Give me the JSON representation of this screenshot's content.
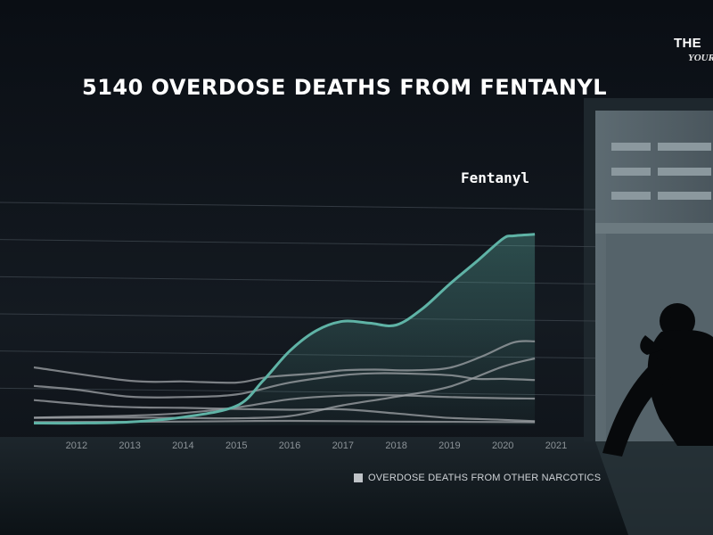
{
  "chart_data": {
    "type": "line",
    "title": "5140 OVERDOSE DEATHS FROM FENTANYL",
    "x": [
      "2012",
      "2013",
      "2014",
      "2015",
      "2016",
      "2017",
      "2018",
      "2019",
      "2020",
      "2021"
    ],
    "highlight_series": {
      "name": "Fentanyl",
      "color": "#5fb3a6",
      "x": [
        2011.2,
        2012,
        2013,
        2014,
        2015,
        2015.5,
        2016,
        2016.5,
        2017,
        2017.5,
        2018,
        2018.5,
        2019,
        2019.5,
        2020,
        2020.2,
        2020.6
      ],
      "values": [
        60,
        60,
        90,
        220,
        520,
        1200,
        2000,
        2550,
        2800,
        2750,
        2700,
        3150,
        3800,
        4400,
        5020,
        5100,
        5140
      ]
    },
    "other_series": [
      {
        "x": [
          2011.2,
          2012.5,
          2013.3,
          2014,
          2015,
          2016,
          2017,
          2018,
          2019,
          2020,
          2020.6
        ],
        "values": [
          680,
          520,
          480,
          470,
          440,
          420,
          430,
          320,
          200,
          150,
          110
        ]
      },
      {
        "x": [
          2011.2,
          2013,
          2014,
          2015,
          2015.6,
          2016.5,
          2017,
          2017.6,
          2018.3,
          2019,
          2019.6,
          2020.2,
          2020.6
        ],
        "values": [
          1560,
          1200,
          1180,
          1150,
          1300,
          1400,
          1480,
          1500,
          1480,
          1550,
          1850,
          2230,
          2260
        ]
      },
      {
        "x": [
          2011.2,
          2012.5,
          2013.3,
          2014,
          2015,
          2016,
          2017,
          2018,
          2019,
          2020,
          2020.6
        ],
        "values": [
          200,
          210,
          210,
          200,
          190,
          250,
          540,
          770,
          1040,
          1580,
          1800
        ]
      },
      {
        "x": [
          2011.2,
          2012,
          2013,
          2014,
          2015,
          2016,
          2017,
          2017.6,
          2018,
          2019,
          2019.5,
          2020,
          2020.6
        ],
        "values": [
          1060,
          960,
          770,
          760,
          830,
          1150,
          1350,
          1400,
          1400,
          1350,
          1250,
          1250,
          1220
        ]
      },
      {
        "x": [
          2011.2,
          2012,
          2013,
          2014,
          2015,
          2016,
          2017,
          2018,
          2019,
          2020,
          2020.6
        ],
        "values": [
          210,
          230,
          260,
          330,
          480,
          700,
          800,
          810,
          760,
          730,
          720
        ]
      },
      {
        "x": [
          2011.2,
          2014,
          2016,
          2018,
          2020,
          2020.6
        ],
        "values": [
          90,
          100,
          120,
          100,
          90,
          85
        ]
      }
    ],
    "other_series_color": "#a0a4a8",
    "legend": [
      {
        "label": "OVERDOSE DEATHS FROM OTHER NARCOTICS",
        "color": "#bfc3c7"
      }
    ],
    "legend_placement": "bottom",
    "grid": true,
    "grid_values": [
      1000,
      2000,
      3000,
      4000,
      5000,
      6000
    ],
    "xlim": [
      2011.2,
      2021
    ],
    "ylim": [
      0,
      6000
    ],
    "xlabel": "",
    "ylabel": ""
  },
  "logo": {
    "line1": "THE",
    "line2": "YOUR"
  }
}
